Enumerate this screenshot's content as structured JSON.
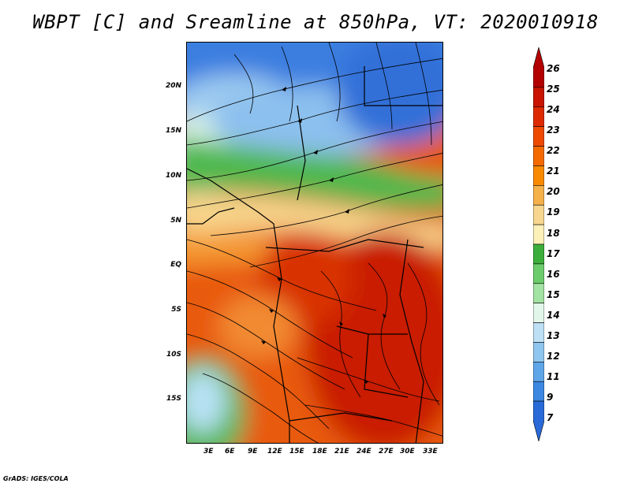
{
  "title": "WBPT [C] and Sreamline at 850hPa, VT: 2020010918",
  "credit": "GrADS: IGES/COLA",
  "map": {
    "lat_labels": [
      "20N",
      "15N",
      "10N",
      "5N",
      "EQ",
      "5S",
      "10S",
      "15S"
    ],
    "lon_labels": [
      "3E",
      "6E",
      "9E",
      "12E",
      "15E",
      "18E",
      "21E",
      "24E",
      "27E",
      "30E",
      "33E"
    ]
  },
  "colorbar": {
    "labels": [
      "26",
      "25",
      "24",
      "23",
      "22",
      "21",
      "20",
      "19",
      "18",
      "17",
      "16",
      "15",
      "14",
      "13",
      "12",
      "11",
      "9",
      "7"
    ],
    "colors": [
      "#b30000",
      "#c81400",
      "#dd2a00",
      "#ee4a00",
      "#f56a00",
      "#f98a00",
      "#f5b04a",
      "#f7d690",
      "#faf0b8",
      "#3cae3c",
      "#6ccc6c",
      "#a2e2a2",
      "#e2f6ea",
      "#bde0f5",
      "#8fc6ef",
      "#5ea6e8",
      "#3c88e2",
      "#2a6ad8"
    ]
  }
}
